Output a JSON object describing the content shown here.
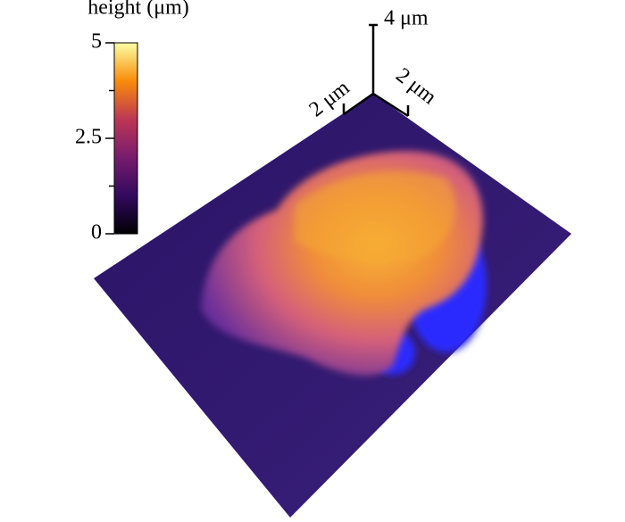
{
  "colorbar": {
    "label": "height (μm)",
    "lim": [
      0,
      5
    ],
    "ticks": [
      0,
      2.5,
      5
    ]
  },
  "scale_bars": {
    "x": "2 μm",
    "y": "2 μm",
    "z": "4 μm"
  }
}
